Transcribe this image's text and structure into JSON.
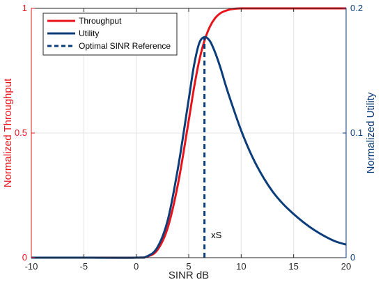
{
  "chart_data": {
    "type": "line",
    "xlabel": "SINR dB",
    "ylabel_left": "Normalized Throughput",
    "ylabel_right": "Normalized Utility",
    "xlim": [
      -10,
      20
    ],
    "ylim_left": [
      0,
      1
    ],
    "ylim_right": [
      0,
      0.2
    ],
    "x_ticks": [
      -10,
      -5,
      0,
      5,
      10,
      15,
      20
    ],
    "x_tick_labels": [
      "-10",
      "-5",
      "0",
      "5",
      "10",
      "15",
      "20"
    ],
    "y_left_ticks": [
      0,
      0.5,
      1
    ],
    "y_left_tick_labels": [
      "0",
      "0.5",
      "1"
    ],
    "y_right_ticks": [
      0,
      0.1,
      0.2
    ],
    "y_right_tick_labels": [
      "0",
      "0.1",
      "0.2"
    ],
    "grid": true,
    "legend_position": "top-left",
    "colors": {
      "throughput": "#e8141c",
      "utility": "#0b3d7a",
      "left_axis": "#e8141c",
      "right_axis": "#0b3d7a",
      "grid": "#e3e3e3"
    },
    "series": [
      {
        "name": "Throughput",
        "axis": "left",
        "style": "solid",
        "x": [
          -10,
          -5,
          0,
          1,
          2,
          3,
          4,
          5,
          5.5,
          6,
          6.5,
          7,
          7.5,
          8,
          8.5,
          9,
          9.5,
          10,
          12,
          15,
          20
        ],
        "y": [
          0,
          0,
          0,
          0.004,
          0.03,
          0.12,
          0.3,
          0.55,
          0.68,
          0.79,
          0.87,
          0.925,
          0.96,
          0.98,
          0.99,
          0.996,
          0.999,
          1,
          1,
          1,
          1
        ]
      },
      {
        "name": "Utility",
        "axis": "right",
        "style": "solid",
        "x": [
          -10,
          -5,
          0,
          1,
          2,
          3,
          4,
          5,
          5.5,
          6,
          6.5,
          7,
          7.5,
          8,
          8.5,
          9,
          10,
          11,
          12,
          13,
          14,
          15,
          16,
          17,
          18,
          19,
          20
        ],
        "y": [
          0,
          0,
          0,
          0.001,
          0.008,
          0.03,
          0.073,
          0.127,
          0.154,
          0.172,
          0.177,
          0.174,
          0.165,
          0.153,
          0.139,
          0.126,
          0.102,
          0.082,
          0.066,
          0.053,
          0.043,
          0.035,
          0.028,
          0.022,
          0.017,
          0.013,
          0.0105
        ]
      },
      {
        "name": "Optimal SINR Reference",
        "axis": "left",
        "style": "dashed",
        "x": [
          6.5,
          6.5
        ],
        "y": [
          0,
          0.88
        ]
      }
    ],
    "annotations": [
      {
        "text": "xS",
        "x": 7.0,
        "y": 0.05
      }
    ]
  }
}
